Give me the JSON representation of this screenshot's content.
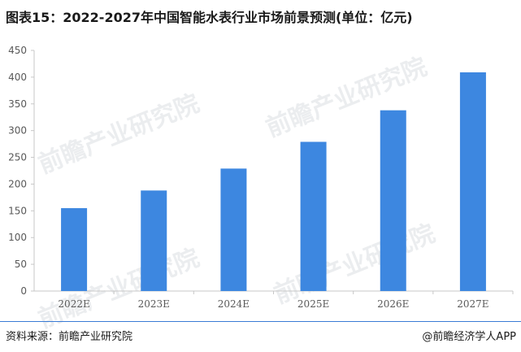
{
  "header": {
    "title": "图表15：2022-2027年中国智能水表行业市场前景预测(单位：亿元)"
  },
  "footer": {
    "source": "资料来源：前瞻产业研究院",
    "credit": "@前瞻经济学人APP"
  },
  "watermark": {
    "text": "前瞻产业研究院"
  },
  "colors": {
    "bar": "#3d87e0",
    "axis": "#c7c7c7",
    "tick_text": "#595959",
    "rule": "#3a7bd5"
  },
  "chart_data": {
    "type": "bar",
    "title": "",
    "categories": [
      "2022E",
      "2023E",
      "2024E",
      "2025E",
      "2026E",
      "2027E"
    ],
    "values": [
      155,
      188,
      229,
      279,
      338,
      409
    ],
    "ylim": [
      0,
      450
    ],
    "yticks": [
      0,
      50,
      100,
      150,
      200,
      250,
      300,
      350,
      400,
      450
    ],
    "xlabel": "",
    "ylabel": "",
    "grid": false,
    "legend": "none"
  }
}
